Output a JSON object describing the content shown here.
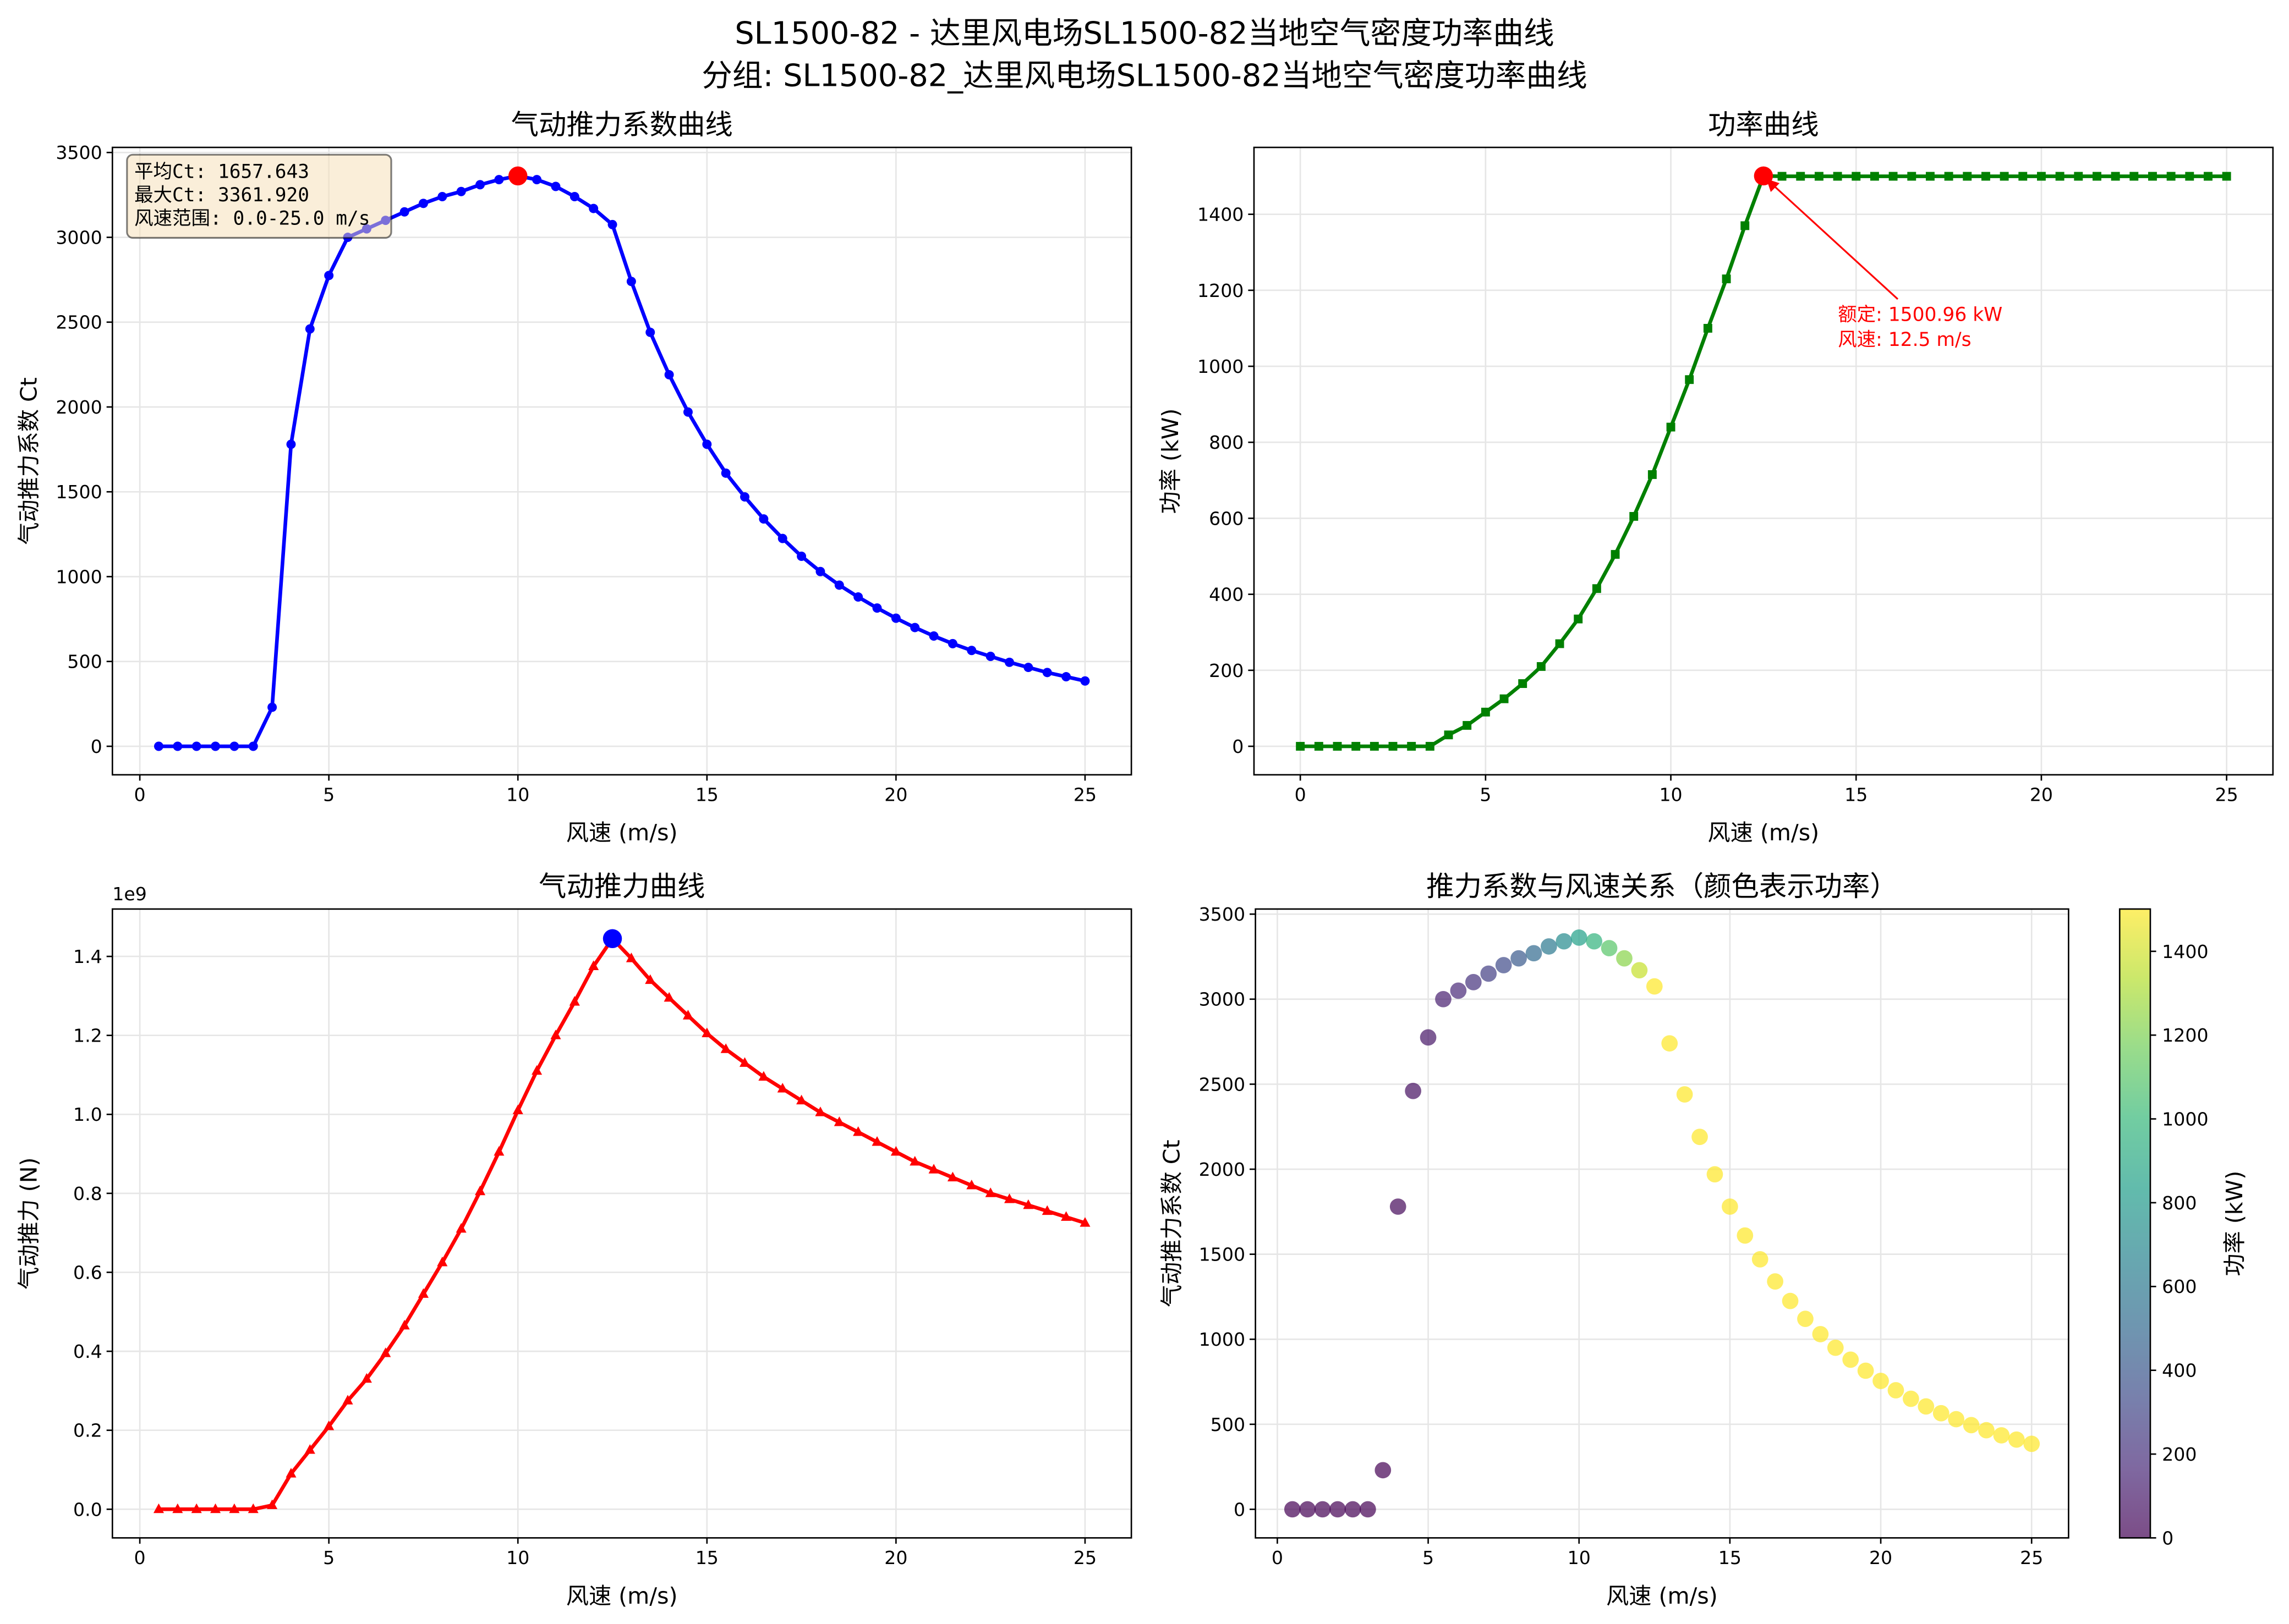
{
  "suptitle": [
    "SL1500-82 - 达里风电场SL1500-82当地空气密度功率曲线",
    "分组: SL1500-82_达里风电场SL1500-82当地空气密度功率曲线"
  ],
  "colors": {
    "ct": "#0000ff",
    "power": "#008000",
    "thrust": "#ff0000",
    "peak_red": "#ff0000",
    "peak_blue": "#0000ff",
    "grid": "#e6e6e6",
    "infobox_bg": "#f5deb3"
  },
  "chart_data": [
    {
      "type": "line",
      "title": "气动推力系数曲线",
      "xlabel": "风速 (m/s)",
      "ylabel": "气动推力系数 Ct",
      "xlim": [
        -0.725,
        26.225
      ],
      "ylim": [
        -168,
        3530
      ],
      "xticks": [
        0,
        5,
        10,
        15,
        20,
        25
      ],
      "yticks": [
        0,
        500,
        1000,
        1500,
        2000,
        2500,
        3000,
        3500
      ],
      "grid": true,
      "x": [
        0.5,
        1,
        1.5,
        2,
        2.5,
        3,
        3.5,
        4,
        4.5,
        5,
        5.5,
        6,
        6.5,
        7,
        7.5,
        8,
        8.5,
        9,
        9.5,
        10,
        10.5,
        11,
        11.5,
        12,
        12.5,
        13,
        13.5,
        14,
        14.5,
        15,
        15.5,
        16,
        16.5,
        17,
        17.5,
        18,
        18.5,
        19,
        19.5,
        20,
        20.5,
        21,
        21.5,
        22,
        22.5,
        23,
        23.5,
        24,
        24.5,
        25
      ],
      "y": [
        0,
        0,
        0,
        0,
        0,
        0,
        230,
        1780,
        2460,
        2775,
        3000,
        3050,
        3100,
        3150,
        3200,
        3240,
        3270,
        3310,
        3340,
        3361.92,
        3340,
        3300,
        3240,
        3170,
        3075,
        2740,
        2440,
        2190,
        1970,
        1780,
        1610,
        1470,
        1340,
        1225,
        1120,
        1030,
        950,
        880,
        815,
        755,
        700,
        650,
        605,
        565,
        530,
        495,
        465,
        435,
        410,
        385
      ],
      "peak": {
        "x": 10,
        "y": 3361.92
      },
      "infobox": [
        "平均Ct: 1657.643",
        "最大Ct: 3361.920",
        "风速范围: 0.0-25.0 m/s"
      ]
    },
    {
      "type": "line",
      "title": "功率曲线",
      "xlabel": "风速 (m/s)",
      "ylabel": "功率 (kW)",
      "xlim": [
        -1.25,
        26.25
      ],
      "ylim": [
        -75,
        1576
      ],
      "xticks": [
        0,
        5,
        10,
        15,
        20,
        25
      ],
      "yticks": [
        0,
        200,
        400,
        600,
        800,
        1000,
        1200,
        1400
      ],
      "grid": true,
      "x": [
        0,
        0.5,
        1,
        1.5,
        2,
        2.5,
        3,
        3.5,
        4,
        4.5,
        5,
        5.5,
        6,
        6.5,
        7,
        7.5,
        8,
        8.5,
        9,
        9.5,
        10,
        10.5,
        11,
        11.5,
        12,
        12.5,
        13,
        13.5,
        14,
        14.5,
        15,
        15.5,
        16,
        16.5,
        17,
        17.5,
        18,
        18.5,
        19,
        19.5,
        20,
        20.5,
        21,
        21.5,
        22,
        22.5,
        23,
        23.5,
        24,
        24.5,
        25
      ],
      "y": [
        0,
        0,
        0,
        0,
        0,
        0,
        0,
        0,
        30,
        55,
        90,
        125,
        165,
        210,
        270,
        335,
        415,
        505,
        605,
        715,
        840,
        965,
        1100,
        1230,
        1370,
        1500.96,
        1500,
        1500,
        1500,
        1500,
        1500,
        1500,
        1500,
        1500,
        1500,
        1500,
        1500,
        1500,
        1500,
        1500,
        1500,
        1500,
        1500,
        1500,
        1500,
        1500,
        1500,
        1500,
        1500,
        1500,
        1500
      ],
      "peak": {
        "x": 12.5,
        "y": 1500.96
      },
      "annotation": [
        "额定: 1500.96 kW",
        "风速: 12.5 m/s"
      ]
    },
    {
      "type": "line",
      "title": "气动推力曲线",
      "xlabel": "风速 (m/s)",
      "ylabel": "气动推力 (N)",
      "offset_label": "1e9",
      "xlim": [
        -0.725,
        26.225
      ],
      "ylim": [
        -0.0725,
        1.52
      ],
      "xticks": [
        0,
        5,
        10,
        15,
        20,
        25
      ],
      "yticks": [
        0.0,
        0.2,
        0.4,
        0.6,
        0.8,
        1.0,
        1.2,
        1.4
      ],
      "ytick_labels": [
        "0.0",
        "0.2",
        "0.4",
        "0.6",
        "0.8",
        "1.0",
        "1.2",
        "1.4"
      ],
      "grid": true,
      "x": [
        0.5,
        1,
        1.5,
        2,
        2.5,
        3,
        3.5,
        4,
        4.5,
        5,
        5.5,
        6,
        6.5,
        7,
        7.5,
        8,
        8.5,
        9,
        9.5,
        10,
        10.5,
        11,
        11.5,
        12,
        12.5,
        13,
        13.5,
        14,
        14.5,
        15,
        15.5,
        16,
        16.5,
        17,
        17.5,
        18,
        18.5,
        19,
        19.5,
        20,
        20.5,
        21,
        21.5,
        22,
        22.5,
        23,
        23.5,
        24,
        24.5,
        25
      ],
      "y": [
        0,
        0,
        0,
        0,
        0,
        0,
        0.01,
        0.09,
        0.15,
        0.21,
        0.275,
        0.33,
        0.395,
        0.465,
        0.545,
        0.625,
        0.71,
        0.805,
        0.905,
        1.01,
        1.11,
        1.2,
        1.285,
        1.375,
        1.445,
        1.395,
        1.34,
        1.295,
        1.25,
        1.205,
        1.165,
        1.13,
        1.095,
        1.065,
        1.035,
        1.005,
        0.98,
        0.955,
        0.93,
        0.905,
        0.88,
        0.86,
        0.84,
        0.82,
        0.8,
        0.785,
        0.77,
        0.755,
        0.74,
        0.725
      ],
      "peak": {
        "x": 12.5,
        "y": 1.445
      }
    },
    {
      "type": "scatter",
      "title": "推力系数与风速关系（颜色表示功率）",
      "xlabel": "风速 (m/s)",
      "ylabel": "气动推力系数 Ct",
      "xlim": [
        -0.725,
        26.225
      ],
      "ylim": [
        -168,
        3530
      ],
      "xticks": [
        0,
        5,
        10,
        15,
        20,
        25
      ],
      "yticks": [
        0,
        500,
        1000,
        1500,
        2000,
        2500,
        3000,
        3500
      ],
      "grid": true,
      "colorbar": {
        "label": "功率 (kW)",
        "range": [
          0,
          1500.96
        ],
        "ticks": [
          0,
          200,
          400,
          600,
          800,
          1000,
          1200,
          1400
        ],
        "colormap": "viridis"
      }
    }
  ]
}
